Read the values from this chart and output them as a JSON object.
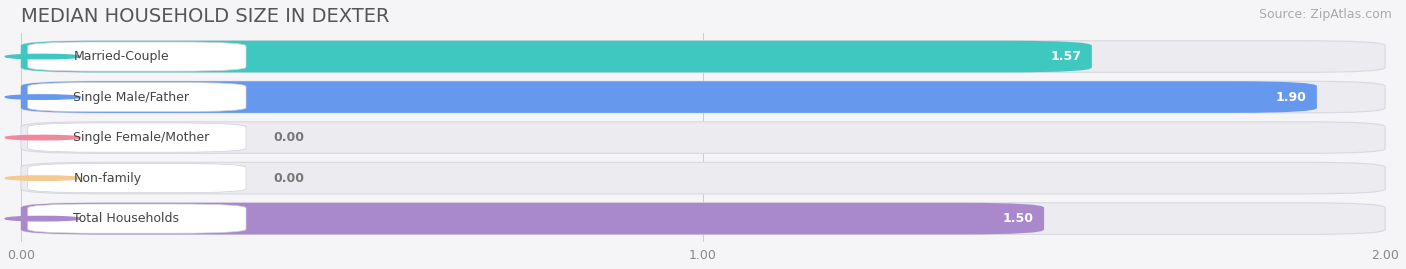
{
  "title": "MEDIAN HOUSEHOLD SIZE IN DEXTER",
  "source": "Source: ZipAtlas.com",
  "categories": [
    "Married-Couple",
    "Single Male/Father",
    "Single Female/Mother",
    "Non-family",
    "Total Households"
  ],
  "values": [
    1.57,
    1.9,
    0.0,
    0.0,
    1.5
  ],
  "bar_colors": [
    "#3ec8c0",
    "#6699ee",
    "#f088a0",
    "#f5c990",
    "#aa88cc"
  ],
  "xlim": [
    0,
    2.0
  ],
  "xticks": [
    0.0,
    1.0,
    2.0
  ],
  "xtick_labels": [
    "0.00",
    "1.00",
    "2.00"
  ],
  "title_fontsize": 14,
  "source_fontsize": 9,
  "bar_label_fontsize": 9,
  "category_fontsize": 9,
  "value_label_color": "#ffffff",
  "value_label_color_outside": "#777777",
  "bg_color": "#f5f5f8",
  "bar_bg_color": "#ebebf0",
  "figsize": [
    14.06,
    2.69
  ],
  "dpi": 100
}
